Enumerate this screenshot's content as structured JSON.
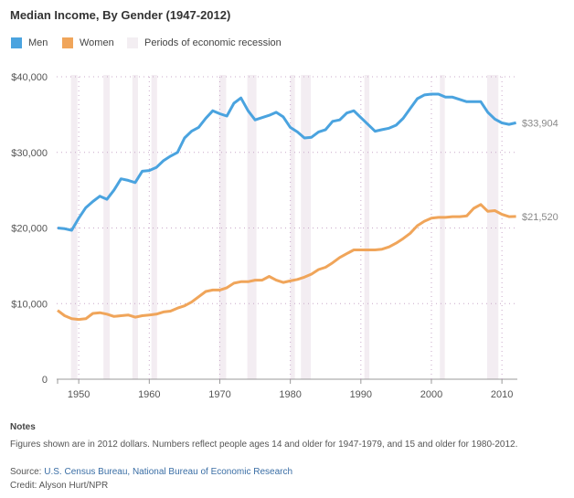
{
  "chart_data": {
    "type": "line",
    "title": "Median Income, By Gender (1947-2012)",
    "x": [
      1947,
      1948,
      1949,
      1950,
      1951,
      1952,
      1953,
      1954,
      1955,
      1956,
      1957,
      1958,
      1959,
      1960,
      1961,
      1962,
      1963,
      1964,
      1965,
      1966,
      1967,
      1968,
      1969,
      1970,
      1971,
      1972,
      1973,
      1974,
      1975,
      1976,
      1977,
      1978,
      1979,
      1980,
      1981,
      1982,
      1983,
      1984,
      1985,
      1986,
      1987,
      1988,
      1989,
      1990,
      1991,
      1992,
      1993,
      1994,
      1995,
      1996,
      1997,
      1998,
      1999,
      2000,
      2001,
      2002,
      2003,
      2004,
      2005,
      2006,
      2007,
      2008,
      2009,
      2010,
      2011,
      2012
    ],
    "series": [
      {
        "name": "Men",
        "color": "#4aa3df",
        "end_label": "$33,904",
        "values": [
          20000,
          19900,
          19700,
          21300,
          22700,
          23500,
          24200,
          23800,
          25000,
          26500,
          26300,
          26000,
          27500,
          27600,
          28000,
          28900,
          29500,
          30000,
          31900,
          32800,
          33300,
          34500,
          35500,
          35100,
          34800,
          36500,
          37200,
          35500,
          34300,
          34600,
          34900,
          35300,
          34700,
          33300,
          32700,
          31900,
          32000,
          32700,
          33000,
          34100,
          34300,
          35200,
          35500,
          34600,
          33700,
          32800,
          33000,
          33200,
          33600,
          34500,
          35800,
          37100,
          37600,
          37700,
          37700,
          37300,
          37300,
          37000,
          36700,
          36700,
          36700,
          35300,
          34400,
          33900,
          33700,
          33904
        ]
      },
      {
        "name": "Women",
        "color": "#f0a55a",
        "end_label": "$21,520",
        "values": [
          9100,
          8400,
          8000,
          7900,
          8000,
          8700,
          8800,
          8600,
          8300,
          8400,
          8500,
          8200,
          8400,
          8500,
          8600,
          8900,
          9000,
          9400,
          9700,
          10200,
          10900,
          11600,
          11800,
          11800,
          12100,
          12700,
          12900,
          12900,
          13100,
          13100,
          13600,
          13100,
          12800,
          13000,
          13200,
          13500,
          13900,
          14500,
          14800,
          15400,
          16100,
          16600,
          17100,
          17100,
          17100,
          17100,
          17200,
          17500,
          18000,
          18600,
          19300,
          20300,
          20900,
          21300,
          21400,
          21400,
          21500,
          21500,
          21600,
          22600,
          23100,
          22200,
          22300,
          21800,
          21500,
          21520
        ]
      }
    ],
    "recession_label": "Periods of economic recession",
    "recessions": [
      [
        1948.9,
        1949.8
      ],
      [
        1953.5,
        1954.4
      ],
      [
        1957.6,
        1958.4
      ],
      [
        1960.3,
        1961.1
      ],
      [
        1969.9,
        1970.9
      ],
      [
        1973.9,
        1975.2
      ],
      [
        1980.0,
        1980.5
      ],
      [
        1981.5,
        1982.9
      ],
      [
        1990.5,
        1991.2
      ],
      [
        2001.2,
        2001.9
      ],
      [
        2007.9,
        2009.5
      ]
    ],
    "y_ticks": [
      {
        "v": 0,
        "label": "0"
      },
      {
        "v": 10000,
        "label": "$10,000"
      },
      {
        "v": 20000,
        "label": "$20,000"
      },
      {
        "v": 30000,
        "label": "$30,000"
      },
      {
        "v": 40000,
        "label": "$40,000"
      }
    ],
    "x_ticks": [
      1950,
      1960,
      1970,
      1980,
      1990,
      2000,
      2010
    ],
    "ylim": [
      0,
      40000
    ],
    "xlim": [
      1947,
      2012
    ],
    "grid": true,
    "legend": "top-left"
  },
  "notes": {
    "heading": "Notes",
    "text": "Figures shown are in 2012 dollars. Numbers reflect people ages 14 and older for 1947-1979, and 15 and older for 1980-2012.",
    "source_label": "Source: ",
    "source_links": "U.S. Census Bureau, National Bureau of Economic Research",
    "credit": "Credit: Alyson Hurt/NPR"
  }
}
